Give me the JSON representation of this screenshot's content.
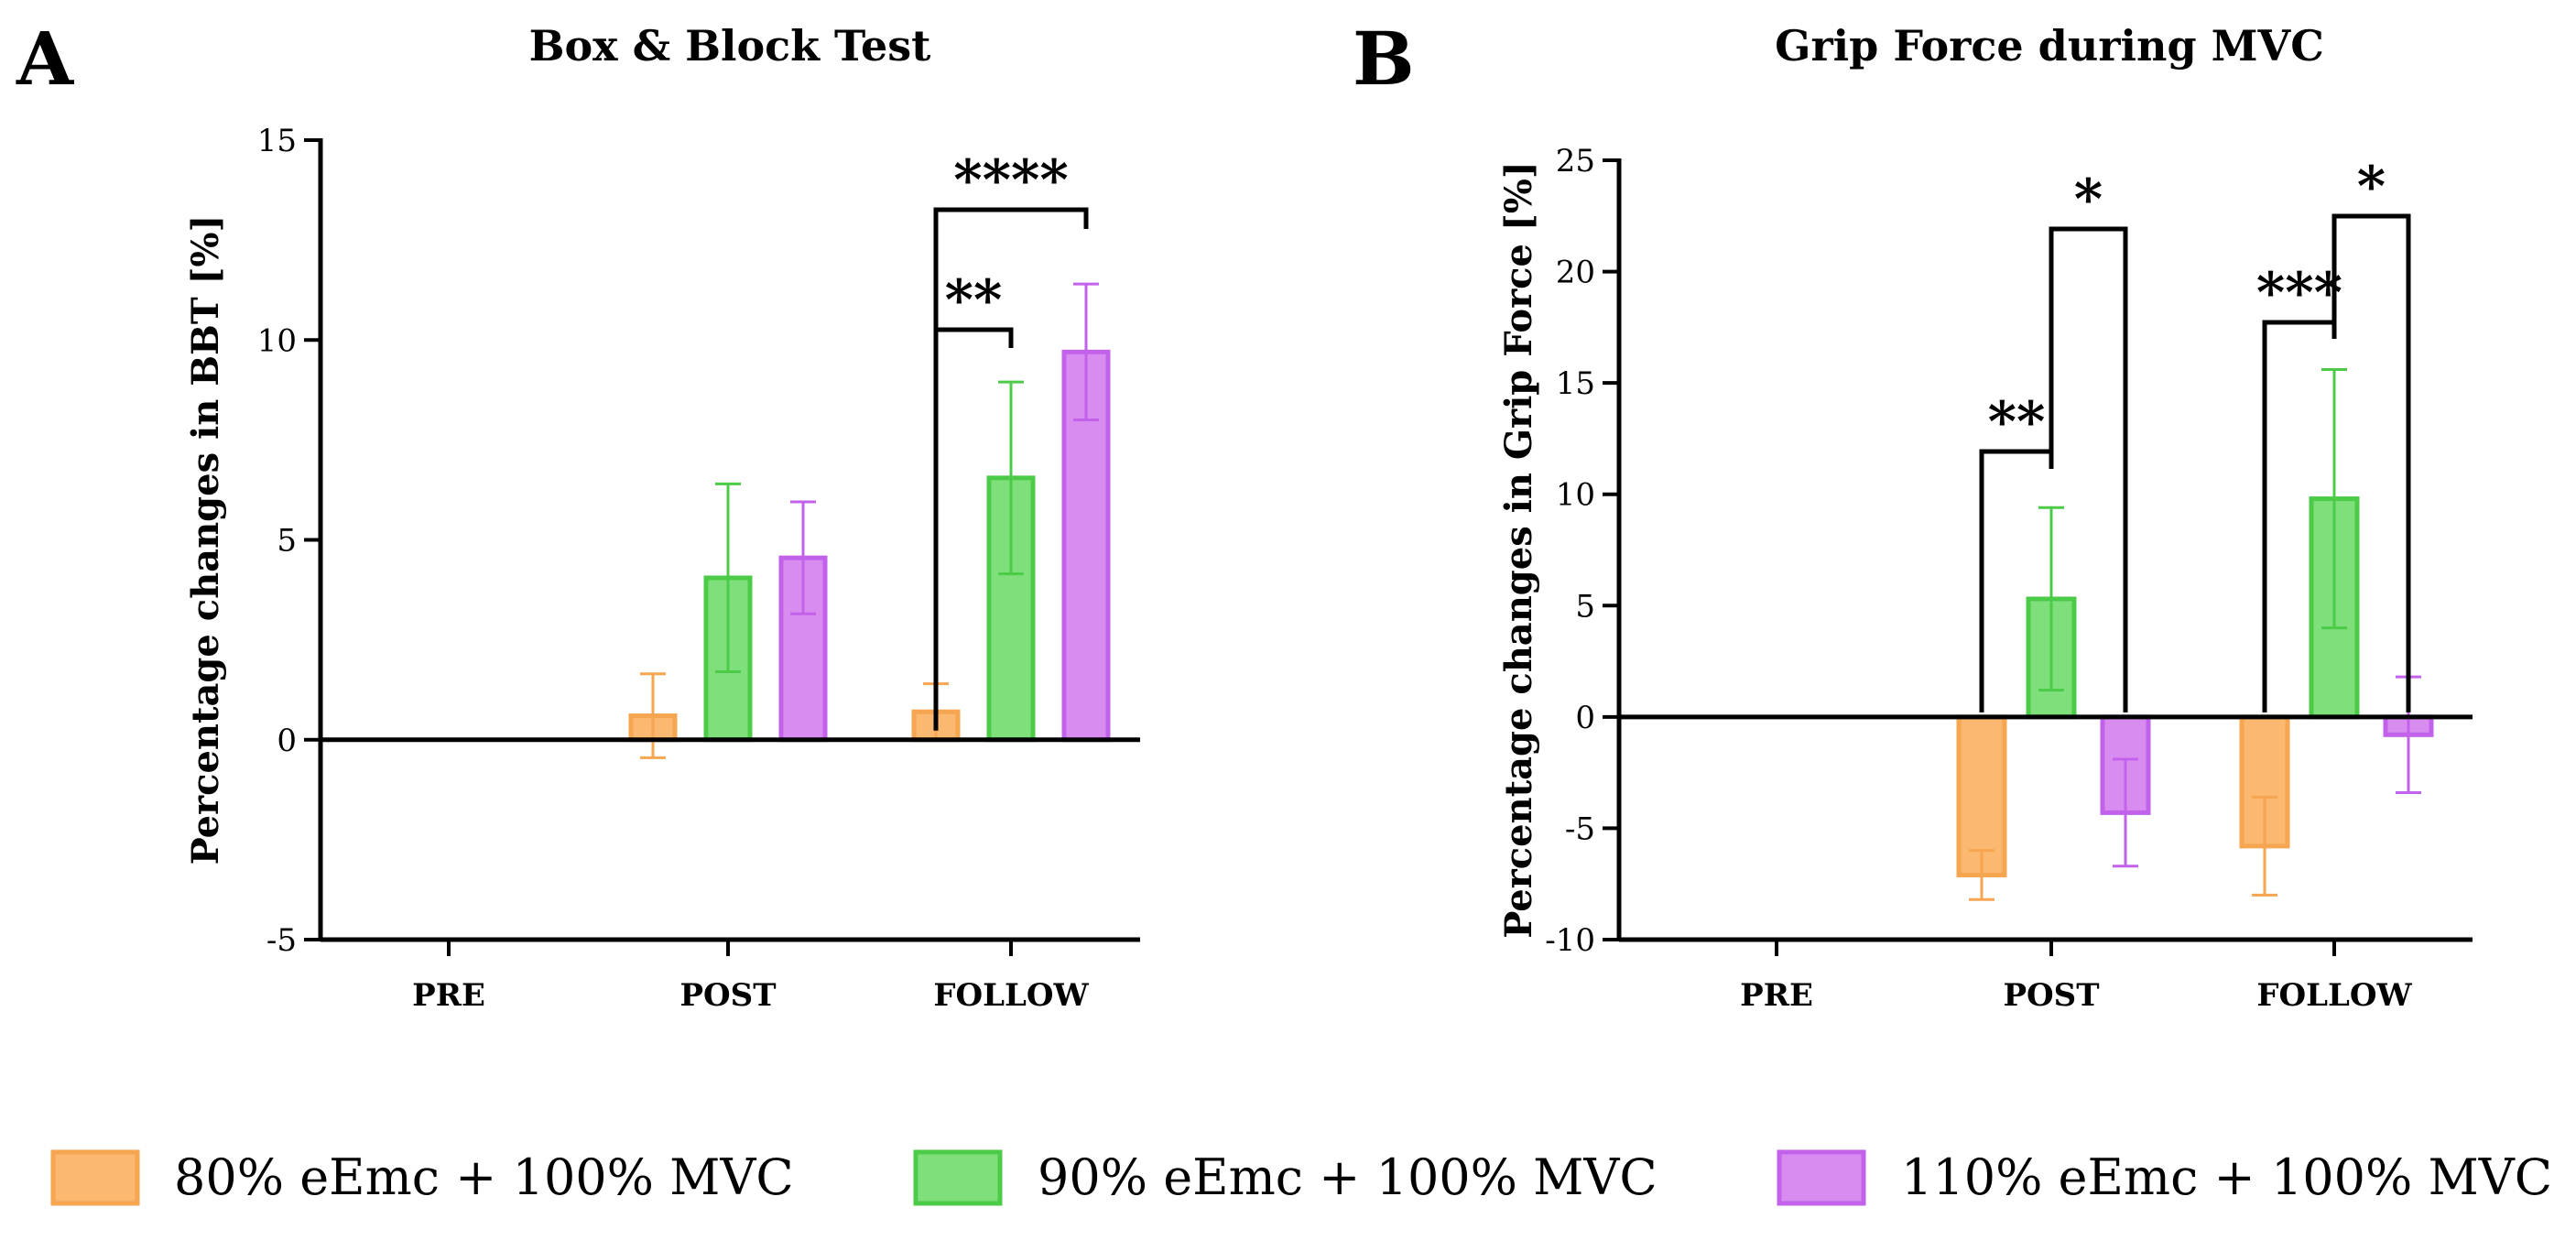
{
  "chart_data": [
    {
      "panel_letter": "A",
      "type": "bar",
      "title": "Box & Block Test",
      "xlabel": "",
      "ylabel": "Percentage changes in BBT [%]",
      "ylim": [
        -5,
        15
      ],
      "yticks": [
        -5,
        0,
        5,
        10,
        15
      ],
      "categories": [
        "PRE",
        "POST",
        "FOLLOW"
      ],
      "series": [
        {
          "name": "80% eEmc + 100% MVC",
          "values": [
            null,
            0.6,
            0.7
          ],
          "errors": [
            null,
            1.05,
            0.7
          ]
        },
        {
          "name": "90% eEmc + 100% MVC",
          "values": [
            null,
            4.05,
            6.55
          ],
          "errors": [
            null,
            2.35,
            2.4
          ]
        },
        {
          "name": "110% eEmc + 100% MVC",
          "values": [
            null,
            4.55,
            9.7
          ],
          "errors": [
            null,
            1.4,
            1.7
          ]
        }
      ],
      "annotations": [
        {
          "text": "**",
          "category": 2,
          "from_series": 0,
          "to_series": 1
        },
        {
          "text": "****",
          "category": 2,
          "from_series": 0,
          "to_series": 2
        }
      ]
    },
    {
      "panel_letter": "B",
      "type": "bar",
      "title": "Grip Force during MVC",
      "xlabel": "",
      "ylabel": "Percentage changes in Grip Force [%]",
      "ylim": [
        -10,
        25
      ],
      "yticks": [
        -10,
        -5,
        0,
        5,
        10,
        15,
        20,
        25
      ],
      "categories": [
        "PRE",
        "POST",
        "FOLLOW"
      ],
      "series": [
        {
          "name": "80% eEmc + 100% MVC",
          "values": [
            null,
            -7.1,
            -5.8
          ],
          "errors": [
            null,
            1.1,
            2.2
          ]
        },
        {
          "name": "90% eEmc + 100% MVC",
          "values": [
            null,
            5.3,
            9.8
          ],
          "errors": [
            null,
            4.1,
            5.8
          ]
        },
        {
          "name": "110% eEmc + 100% MVC",
          "values": [
            null,
            -4.3,
            -0.8
          ],
          "errors": [
            null,
            2.4,
            2.6
          ]
        }
      ],
      "annotations": [
        {
          "text": "**",
          "category": 1,
          "from_series": 0,
          "to_series": 1
        },
        {
          "text": "*",
          "category": 1,
          "from_series": 1,
          "to_series": 2
        },
        {
          "text": "***",
          "category": 2,
          "from_series": 0,
          "to_series": 1
        },
        {
          "text": "*",
          "category": 2,
          "from_series": 1,
          "to_series": 2
        }
      ]
    }
  ],
  "colors": {
    "series_fill": [
      "#FBB871",
      "#7FDF7B",
      "#D98CF0"
    ],
    "series_stroke": [
      "#F6A550",
      "#4CCB48",
      "#C262EB"
    ],
    "axis": "#000000"
  },
  "legend": [
    {
      "label": "80% eEmc + 100% MVC"
    },
    {
      "label": "90% eEmc + 100% MVC"
    },
    {
      "label": "110% eEmc + 100% MVC"
    }
  ]
}
